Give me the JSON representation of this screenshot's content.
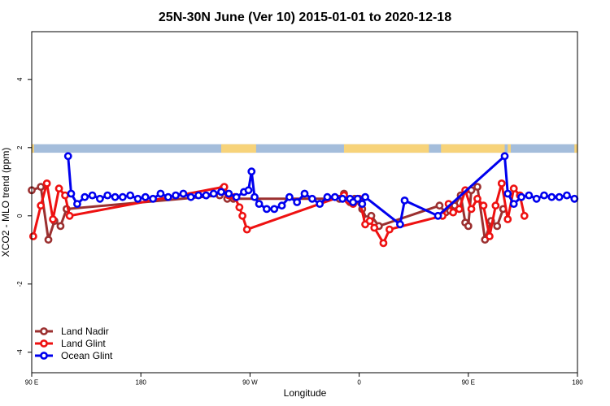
{
  "chart_data": {
    "type": "line",
    "title": "25N-30N June (Ver 10)   2015-01-01 to 2020-12-18",
    "xlabel": "Longitude",
    "ylabel": "XCO2 - MLO trend (ppm)",
    "xlim": [
      0,
      360
    ],
    "ylim": [
      -4.6,
      5.4
    ],
    "x_ticks": [
      {
        "value": 0,
        "label": "90 E"
      },
      {
        "value": 72,
        "label": "180"
      },
      {
        "value": 144,
        "label": "90 W"
      },
      {
        "value": 216,
        "label": "0"
      },
      {
        "value": 288,
        "label": "90 E"
      },
      {
        "value": 360,
        "label": "180"
      }
    ],
    "y_ticks": [
      {
        "value": -4,
        "label": "-4"
      },
      {
        "value": -2,
        "label": "-2"
      },
      {
        "value": 0,
        "label": "0"
      },
      {
        "value": 2,
        "label": "2"
      },
      {
        "value": 4,
        "label": "4"
      }
    ],
    "surface_strip": {
      "y_range": [
        1.85,
        2.1
      ],
      "ocean_color": "#a4bddb",
      "land_color": "#f7d37a",
      "land_intervals": [
        [
          0,
          1.5
        ],
        [
          125,
          148
        ],
        [
          206,
          262
        ],
        [
          270,
          312
        ],
        [
          314,
          316
        ],
        [
          358,
          360
        ]
      ]
    },
    "legend_position": "bottom-left",
    "series": [
      {
        "name": "Land Nadir",
        "color": "#9b3030",
        "points": [
          [
            0,
            0.75
          ],
          [
            6,
            0.85
          ],
          [
            11,
            -0.7
          ],
          [
            15,
            -0.15
          ],
          [
            19,
            -0.3
          ],
          [
            23,
            0.2
          ],
          [
            124,
            0.6
          ],
          [
            126,
            0.8
          ],
          [
            129,
            0.5
          ],
          [
            133,
            0.5
          ],
          [
            203,
            0.5
          ],
          [
            206,
            0.65
          ],
          [
            210,
            0.4
          ],
          [
            213,
            0.5
          ],
          [
            218,
            0.2
          ],
          [
            221,
            -0.1
          ],
          [
            224,
            0.0
          ],
          [
            229,
            -0.3
          ],
          [
            269,
            0.3
          ],
          [
            273,
            0.1
          ],
          [
            276,
            0.15
          ],
          [
            279,
            0.3
          ],
          [
            283,
            0.6
          ],
          [
            286,
            -0.2
          ],
          [
            288,
            -0.3
          ],
          [
            290,
            0.75
          ],
          [
            294,
            0.85
          ],
          [
            299,
            -0.7
          ],
          [
            303,
            -0.15
          ],
          [
            307,
            -0.3
          ],
          [
            311,
            0.2
          ]
        ]
      },
      {
        "name": "Land Glint",
        "color": "#ee1111",
        "points": [
          [
            1,
            -0.6
          ],
          [
            6,
            0.3
          ],
          [
            10,
            0.95
          ],
          [
            14,
            -0.1
          ],
          [
            18,
            0.8
          ],
          [
            22,
            0.6
          ],
          [
            25,
            0.0
          ],
          [
            127,
            0.85
          ],
          [
            130,
            0.6
          ],
          [
            134,
            0.55
          ],
          [
            137,
            0.25
          ],
          [
            139,
            0.0
          ],
          [
            142,
            -0.4
          ],
          [
            206,
            0.6
          ],
          [
            209,
            0.45
          ],
          [
            212,
            0.35
          ],
          [
            216,
            0.5
          ],
          [
            220,
            -0.25
          ],
          [
            223,
            -0.15
          ],
          [
            226,
            -0.35
          ],
          [
            232,
            -0.8
          ],
          [
            236,
            -0.4
          ],
          [
            271,
            0.0
          ],
          [
            275,
            0.35
          ],
          [
            278,
            0.1
          ],
          [
            282,
            0.2
          ],
          [
            286,
            0.75
          ],
          [
            290,
            0.2
          ],
          [
            294,
            0.5
          ],
          [
            298,
            0.3
          ],
          [
            302,
            -0.6
          ],
          [
            306,
            0.3
          ],
          [
            310,
            0.95
          ],
          [
            314,
            -0.1
          ],
          [
            318,
            0.8
          ],
          [
            322,
            0.6
          ],
          [
            325,
            0.0
          ]
        ]
      },
      {
        "name": "Ocean Glint",
        "color": "#0000ee",
        "points": [
          [
            24,
            1.75
          ],
          [
            26,
            0.65
          ],
          [
            30,
            0.35
          ],
          [
            35,
            0.55
          ],
          [
            40,
            0.6
          ],
          [
            45,
            0.5
          ],
          [
            50,
            0.6
          ],
          [
            55,
            0.55
          ],
          [
            60,
            0.55
          ],
          [
            65,
            0.6
          ],
          [
            70,
            0.5
          ],
          [
            75,
            0.55
          ],
          [
            80,
            0.5
          ],
          [
            85,
            0.65
          ],
          [
            90,
            0.55
          ],
          [
            95,
            0.6
          ],
          [
            100,
            0.65
          ],
          [
            105,
            0.55
          ],
          [
            110,
            0.6
          ],
          [
            115,
            0.6
          ],
          [
            120,
            0.65
          ],
          [
            125,
            0.7
          ],
          [
            130,
            0.65
          ],
          [
            135,
            0.55
          ],
          [
            140,
            0.7
          ],
          [
            143,
            0.75
          ],
          [
            145,
            1.3
          ],
          [
            147,
            0.55
          ],
          [
            150,
            0.35
          ],
          [
            155,
            0.2
          ],
          [
            160,
            0.2
          ],
          [
            165,
            0.3
          ],
          [
            170,
            0.55
          ],
          [
            175,
            0.4
          ],
          [
            180,
            0.65
          ],
          [
            185,
            0.5
          ],
          [
            190,
            0.35
          ],
          [
            195,
            0.55
          ],
          [
            200,
            0.55
          ],
          [
            205,
            0.5
          ],
          [
            210,
            0.5
          ],
          [
            212,
            0.4
          ],
          [
            215,
            0.5
          ],
          [
            218,
            0.35
          ],
          [
            220,
            0.55
          ],
          [
            243,
            -0.25
          ],
          [
            246,
            0.45
          ],
          [
            268,
            0.0
          ],
          [
            312,
            1.75
          ],
          [
            314,
            0.65
          ],
          [
            318,
            0.35
          ],
          [
            323,
            0.55
          ],
          [
            328,
            0.6
          ],
          [
            333,
            0.5
          ],
          [
            338,
            0.6
          ],
          [
            343,
            0.55
          ],
          [
            348,
            0.55
          ],
          [
            353,
            0.6
          ],
          [
            358,
            0.5
          ]
        ]
      }
    ]
  }
}
